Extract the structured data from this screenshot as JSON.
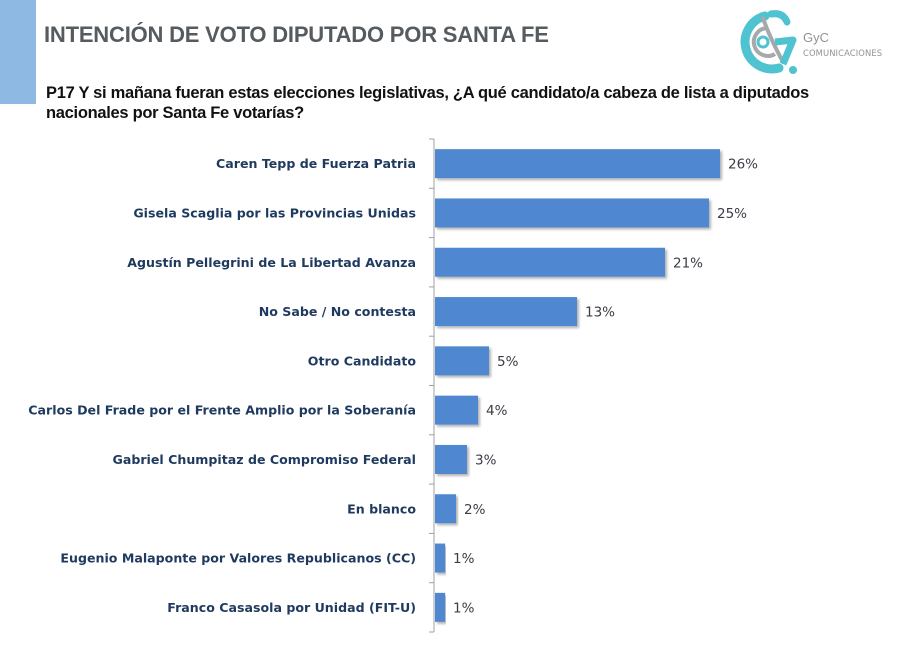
{
  "header": {
    "title": "INTENCIÓN DE VOTO DIPUTADO POR SANTA FE",
    "accent_color": "#8DB9E3"
  },
  "logo": {
    "name": "GyC",
    "subtitle": "COMUNICACIONES",
    "primary_color": "#4FC3CF",
    "secondary_color": "#A6A8AB"
  },
  "question": {
    "text": "P17 Y si mañana fueran estas elecciones legislativas, ¿A qué candidato/a cabeza de lista a diputados nacionales por Santa Fe votarías?"
  },
  "chart_data": {
    "type": "bar",
    "orientation": "horizontal",
    "title": "P17 Y si mañana fueran estas elecciones legislativas, ¿A qué candidato/a cabeza de lista a diputados nacionales por Santa Fe votarías?",
    "xlabel": "",
    "ylabel": "",
    "xlim": [
      0,
      26
    ],
    "grid": false,
    "bar_color": "#4F88D0",
    "categories": [
      "Caren Tepp de Fuerza Patria",
      "Gisela Scaglia por las Provincias Unidas",
      "Agustín Pellegrini de La Libertad Avanza",
      "No Sabe / No contesta",
      "Otro Candidato",
      "Carlos Del Frade por el Frente Amplio por la Soberanía",
      "Gabriel Chumpitaz de Compromiso Federal",
      "En blanco",
      "Eugenio Malaponte por Valores Republicanos (CC)",
      "Franco Casasola por Unidad (FIT-U)"
    ],
    "values": [
      26,
      25,
      21,
      13,
      5,
      4,
      3,
      2,
      1,
      1
    ],
    "value_labels": [
      "26%",
      "25%",
      "21%",
      "13%",
      "5%",
      "4%",
      "3%",
      "2%",
      "1%",
      "1%"
    ]
  }
}
